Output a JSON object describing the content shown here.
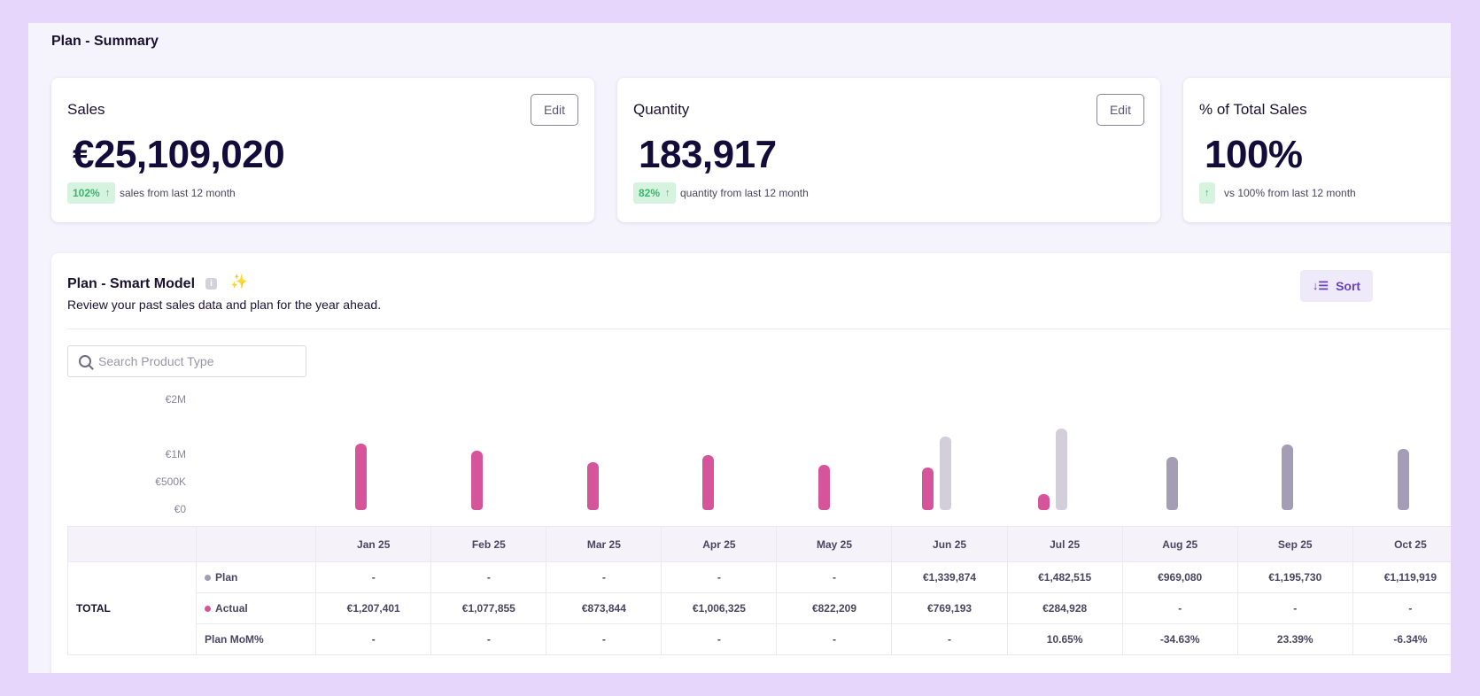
{
  "page": {
    "title": "Plan - Summary"
  },
  "cards": {
    "sales": {
      "title": "Sales",
      "value": "€25,109,020",
      "edit_label": "Edit",
      "badge": "102%",
      "badge_arrow": "↑",
      "note": "sales from last 12 month"
    },
    "quantity": {
      "title": "Quantity",
      "value": "183,917",
      "edit_label": "Edit",
      "badge": "82%",
      "badge_arrow": "↑",
      "note": "quantity from last 12 month"
    },
    "share": {
      "title": "% of Total Sales",
      "value": "100%",
      "badge_arrow": "↑",
      "note": "vs 100% from last 12 month"
    }
  },
  "panel": {
    "title": "Plan - Smart Model",
    "info_icon_glyph": "i",
    "sparkle_glyph": "✨",
    "subtitle": "Review your past sales data and plan for the year ahead.",
    "sort_label": "Sort",
    "sort_glyph": "↓☰",
    "search_placeholder": "Search Product Type"
  },
  "chart_data": {
    "type": "bar",
    "categories": [
      "Jan 25",
      "Feb 25",
      "Mar 25",
      "Apr 25",
      "May 25",
      "Jun 25",
      "Jul 25",
      "Aug 25",
      "Sep 25",
      "Oct 25"
    ],
    "yticks": [
      {
        "label": "€2M",
        "value": 2000000
      },
      {
        "label": "€1M",
        "value": 1000000
      },
      {
        "label": "€500K",
        "value": 500000
      },
      {
        "label": "€0",
        "value": 0
      }
    ],
    "series": [
      {
        "name": "Actual",
        "color": "#d6559a",
        "values": [
          1207401,
          1077855,
          873844,
          1006325,
          822209,
          769193,
          284928,
          null,
          null,
          null
        ]
      },
      {
        "name": "Plan",
        "color": "#d2cfdb",
        "future_color": "#a39eb6",
        "values": [
          null,
          null,
          null,
          null,
          null,
          1339874,
          1482515,
          969080,
          1195730,
          1119919
        ]
      }
    ]
  },
  "table": {
    "group_label": "TOTAL",
    "months": [
      "Jan 25",
      "Feb 25",
      "Mar 25",
      "Apr 25",
      "May 25",
      "Jun 25",
      "Jul 25",
      "Aug 25",
      "Sep 25",
      "Oct 25"
    ],
    "rows": [
      {
        "label": "Plan",
        "dot_color": "#a39eb6",
        "cells": [
          "-",
          "-",
          "-",
          "-",
          "-",
          "€1,339,874",
          "€1,482,515",
          "€969,080",
          "€1,195,730",
          "€1,119,919"
        ]
      },
      {
        "label": "Actual",
        "dot_color": "#d6559a",
        "cells": [
          "€1,207,401",
          "€1,077,855",
          "€873,844",
          "€1,006,325",
          "€822,209",
          "€769,193",
          "€284,928",
          "-",
          "-",
          "-"
        ]
      },
      {
        "label": "Plan MoM%",
        "dot_color": "",
        "cells": [
          "-",
          "-",
          "-",
          "-",
          "-",
          "-",
          "10.65%",
          "-34.63%",
          "23.39%",
          "-6.34%"
        ]
      }
    ]
  }
}
